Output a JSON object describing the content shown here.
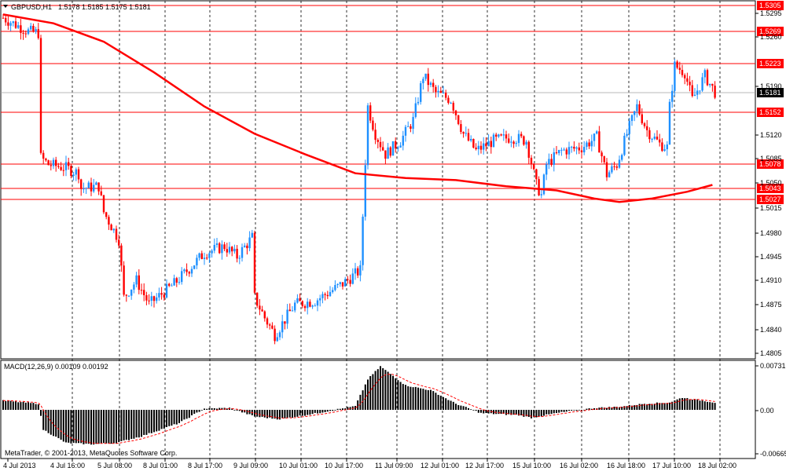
{
  "header": {
    "symbol_timeframe": "GBPUSD,H1",
    "ohlc": "1.5178 1.5185 1.5175 1.5181",
    "menu_arrow_icon": "triangle-down-icon"
  },
  "macd": {
    "label": "MACD(12,26,9) 0.00109 0.00192",
    "axis_labels": [
      "0.00731",
      "0.00",
      "-0.00665"
    ]
  },
  "footer": {
    "copyright": "MetaTrader, © 2001-2013, MetaQuotes Software Corp."
  },
  "colors": {
    "bull": "#1e90ff",
    "bear": "#ff0000",
    "ma": "#ff0000",
    "level_line": "#ff0000",
    "current_price_label_bg": "#000000"
  },
  "chart_data": {
    "type": "candlestick",
    "symbol": "GBPUSD",
    "timeframe": "H1",
    "y_tick_labels": [
      "1.5295",
      "1.5260",
      "1.5190",
      "1.5120",
      "1.5085",
      "1.5050",
      "1.5015",
      "1.4980",
      "1.4945",
      "1.4910",
      "1.4875",
      "1.4840",
      "1.4805"
    ],
    "ylim": [
      1.479,
      1.5315
    ],
    "x_tick_labels": [
      "4 Jul 2013",
      "4 Jul 16:00",
      "5 Jul 08:00",
      "8 Jul 01:00",
      "8 Jul 17:00",
      "9 Jul 09:00",
      "10 Jul 01:00",
      "10 Jul 17:00",
      "11 Jul 09:00",
      "12 Jul 01:00",
      "12 Jul 17:00",
      "15 Jul 10:00",
      "16 Jul 02:00",
      "16 Jul 18:00",
      "17 Jul 10:00",
      "18 Jul 02:00"
    ],
    "horizontal_levels": [
      {
        "label": "1.5305",
        "value": 1.5305
      },
      {
        "label": "1.5269",
        "value": 1.5269
      },
      {
        "label": "1.5223",
        "value": 1.5223
      },
      {
        "label": "1.5152",
        "value": 1.5152
      },
      {
        "label": "1.5078",
        "value": 1.5078
      },
      {
        "label": "1.5043",
        "value": 1.5043
      },
      {
        "label": "1.5027",
        "value": 1.5027
      }
    ],
    "current_price": {
      "label": "1.5181",
      "value": 1.5181
    },
    "close_path": [
      [
        0,
        1.529
      ],
      [
        5,
        1.528
      ],
      [
        10,
        1.527
      ],
      [
        14,
        1.5268
      ],
      [
        15,
        1.5085
      ],
      [
        18,
        1.5075
      ],
      [
        25,
        1.507
      ],
      [
        30,
        1.5062
      ],
      [
        31,
        1.504
      ],
      [
        38,
        1.5043
      ],
      [
        40,
        1.5005
      ],
      [
        46,
        1.4965
      ],
      [
        48,
        1.488
      ],
      [
        53,
        1.4905
      ],
      [
        58,
        1.487
      ],
      [
        68,
        1.49
      ],
      [
        80,
        1.4945
      ],
      [
        88,
        1.4955
      ],
      [
        93,
        1.494
      ],
      [
        99,
        1.4968
      ],
      [
        100,
        1.488
      ],
      [
        104,
        1.485
      ],
      [
        108,
        1.4825
      ],
      [
        116,
        1.487
      ],
      [
        124,
        1.4875
      ],
      [
        135,
        1.49
      ],
      [
        142,
        1.492
      ],
      [
        143,
        1.5
      ],
      [
        145,
        1.516
      ],
      [
        148,
        1.512
      ],
      [
        152,
        1.509
      ],
      [
        158,
        1.511
      ],
      [
        163,
        1.514
      ],
      [
        167,
        1.5205
      ],
      [
        172,
        1.518
      ],
      [
        178,
        1.517
      ],
      [
        183,
        1.512
      ],
      [
        188,
        1.5095
      ],
      [
        195,
        1.511
      ],
      [
        202,
        1.5115
      ],
      [
        208,
        1.511
      ],
      [
        212,
        1.5045
      ],
      [
        214,
        1.503
      ],
      [
        216,
        1.5075
      ],
      [
        222,
        1.5095
      ],
      [
        230,
        1.51
      ],
      [
        236,
        1.5115
      ],
      [
        240,
        1.506
      ],
      [
        244,
        1.5075
      ],
      [
        248,
        1.512
      ],
      [
        252,
        1.516
      ],
      [
        256,
        1.5125
      ],
      [
        261,
        1.5105
      ],
      [
        264,
        1.51
      ],
      [
        265,
        1.516
      ],
      [
        267,
        1.522
      ],
      [
        271,
        1.521
      ],
      [
        274,
        1.517
      ],
      [
        279,
        1.5205
      ],
      [
        283,
        1.5181
      ]
    ],
    "moving_average": [
      [
        0,
        1.5295
      ],
      [
        20,
        1.5282
      ],
      [
        40,
        1.5255
      ],
      [
        60,
        1.521
      ],
      [
        80,
        1.516
      ],
      [
        100,
        1.512
      ],
      [
        120,
        1.509
      ],
      [
        140,
        1.5062
      ],
      [
        160,
        1.5055
      ],
      [
        180,
        1.5052
      ],
      [
        200,
        1.5043
      ],
      [
        220,
        1.5037
      ],
      [
        235,
        1.5025
      ],
      [
        245,
        1.502
      ],
      [
        258,
        1.5025
      ],
      [
        272,
        1.5035
      ],
      [
        282,
        1.5045
      ]
    ],
    "macd_histogram_path": [
      [
        0,
        0.0015
      ],
      [
        14,
        0.001
      ],
      [
        16,
        -0.003
      ],
      [
        25,
        -0.005
      ],
      [
        35,
        -0.0052
      ],
      [
        45,
        -0.005
      ],
      [
        55,
        -0.004
      ],
      [
        70,
        -0.002
      ],
      [
        80,
        0.0002
      ],
      [
        90,
        0.0003
      ],
      [
        100,
        -0.001
      ],
      [
        110,
        -0.0014
      ],
      [
        125,
        -0.0005
      ],
      [
        140,
        0.0006
      ],
      [
        145,
        0.005
      ],
      [
        150,
        0.0071
      ],
      [
        160,
        0.004
      ],
      [
        170,
        0.0032
      ],
      [
        180,
        0.001
      ],
      [
        190,
        -0.0005
      ],
      [
        205,
        -0.0008
      ],
      [
        210,
        -0.0012
      ],
      [
        220,
        -0.0005
      ],
      [
        235,
        0.0003
      ],
      [
        245,
        0.0005
      ],
      [
        255,
        0.001
      ],
      [
        265,
        0.0012
      ],
      [
        270,
        0.002
      ],
      [
        283,
        0.0012
      ]
    ],
    "macd_ylim": [
      -0.00665,
      0.00731
    ]
  }
}
